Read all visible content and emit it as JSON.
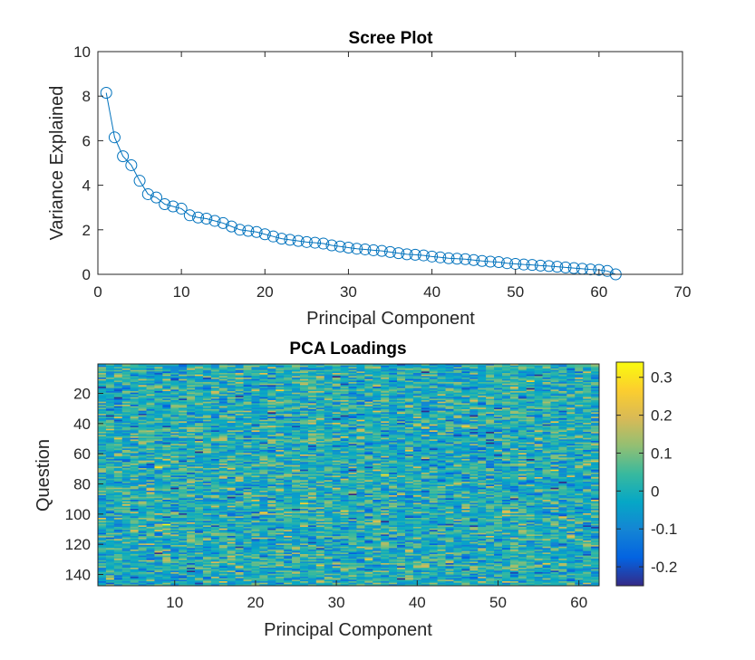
{
  "colors": {
    "line": "#0072BD",
    "axis": "#262626",
    "parula": [
      "#352A87",
      "#0363E1",
      "#1485D4",
      "#06A7C6",
      "#38B99E",
      "#92BF73",
      "#D9BA56",
      "#FCCE2E",
      "#F9FB0E"
    ]
  },
  "chart_data": [
    {
      "type": "line",
      "title": "Scree Plot",
      "xlabel": "Principal Component",
      "ylabel": "Variance Explained",
      "xlim": [
        0,
        70
      ],
      "ylim": [
        0,
        10
      ],
      "xticks": [
        0,
        10,
        20,
        30,
        40,
        50,
        60,
        70
      ],
      "yticks": [
        0,
        2,
        4,
        6,
        8,
        10
      ],
      "marker": "circle",
      "grid": false,
      "x": [
        1,
        2,
        3,
        4,
        5,
        6,
        7,
        8,
        9,
        10,
        11,
        12,
        13,
        14,
        15,
        16,
        17,
        18,
        19,
        20,
        21,
        22,
        23,
        24,
        25,
        26,
        27,
        28,
        29,
        30,
        31,
        32,
        33,
        34,
        35,
        36,
        37,
        38,
        39,
        40,
        41,
        42,
        43,
        44,
        45,
        46,
        47,
        48,
        49,
        50,
        51,
        52,
        53,
        54,
        55,
        56,
        57,
        58,
        59,
        60,
        61,
        62
      ],
      "y": [
        8.15,
        6.15,
        5.3,
        4.9,
        4.2,
        3.6,
        3.45,
        3.15,
        3.05,
        2.95,
        2.65,
        2.55,
        2.5,
        2.4,
        2.3,
        2.15,
        2.0,
        1.95,
        1.9,
        1.8,
        1.7,
        1.6,
        1.55,
        1.5,
        1.45,
        1.42,
        1.38,
        1.3,
        1.25,
        1.2,
        1.15,
        1.12,
        1.08,
        1.05,
        1.0,
        0.95,
        0.9,
        0.88,
        0.85,
        0.8,
        0.76,
        0.72,
        0.7,
        0.68,
        0.64,
        0.6,
        0.57,
        0.55,
        0.5,
        0.47,
        0.44,
        0.42,
        0.39,
        0.37,
        0.34,
        0.31,
        0.28,
        0.25,
        0.22,
        0.2,
        0.15,
        0.0
      ]
    },
    {
      "type": "heatmap",
      "title": "PCA Loadings",
      "xlabel": "Principal Component",
      "ylabel": "Question",
      "n_rows": 147,
      "n_cols": 62,
      "xticks": [
        10,
        20,
        30,
        40,
        50,
        60
      ],
      "yticks": [
        20,
        40,
        60,
        80,
        100,
        120,
        140
      ],
      "clim": [
        -0.25,
        0.34
      ],
      "colorbar_ticks": [
        0.3,
        0.2,
        0.1,
        0,
        -0.1,
        -0.2
      ],
      "colorbar_tick_labels": [
        "0.3",
        "0.2",
        "0.1",
        "0",
        "-0.1",
        "-0.2"
      ],
      "colormap": "parula"
    }
  ]
}
